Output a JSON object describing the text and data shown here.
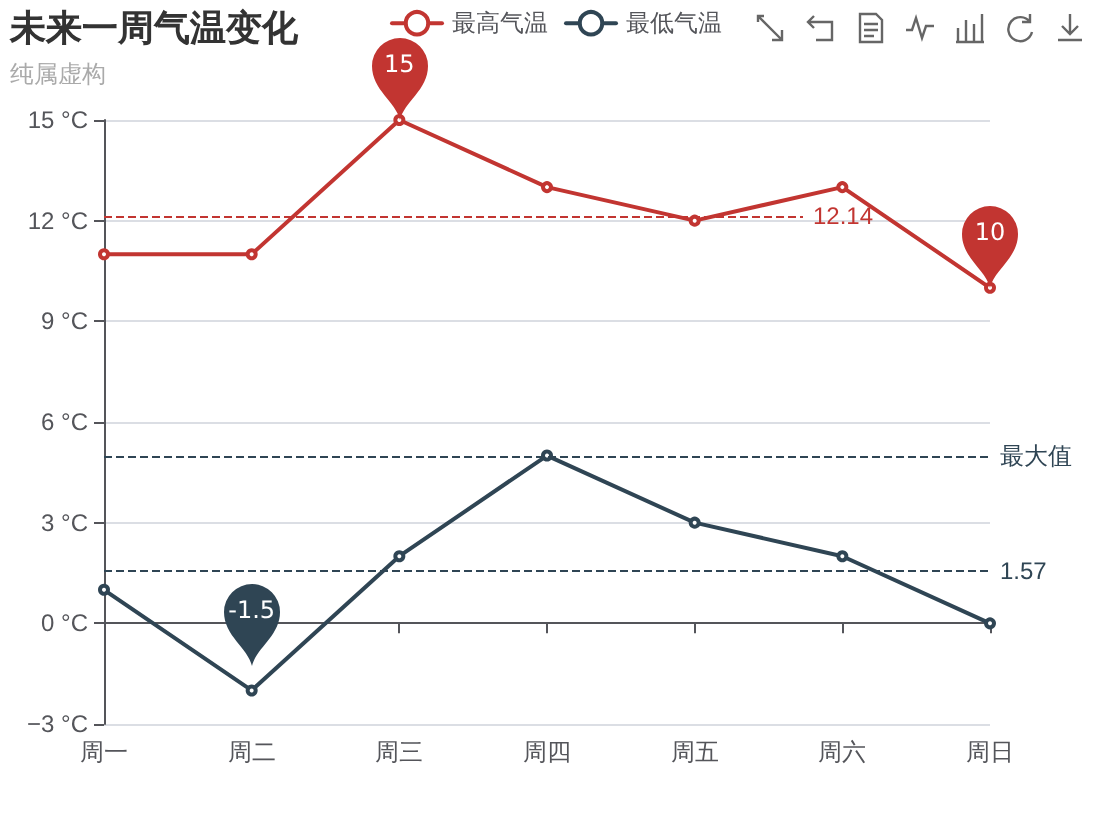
{
  "chart_data": {
    "type": "line",
    "title": "未来一周气温变化",
    "subtitle": "纯属虚构",
    "categories": [
      "周一",
      "周二",
      "周三",
      "周四",
      "周五",
      "周六",
      "周日"
    ],
    "series": [
      {
        "name": "最高气温",
        "color": "#c23531",
        "values": [
          11,
          11,
          15,
          13,
          12,
          13,
          10
        ]
      },
      {
        "name": "最低气温",
        "color": "#2f4554",
        "values": [
          1,
          -2,
          2,
          5,
          3,
          2,
          0
        ]
      }
    ],
    "ylim": [
      -3,
      15
    ],
    "yticks": [
      {
        "value": -3,
        "label": "−3 °C"
      },
      {
        "value": 0,
        "label": "0 °C"
      },
      {
        "value": 3,
        "label": "3 °C"
      },
      {
        "value": 6,
        "label": "6 °C"
      },
      {
        "value": 9,
        "label": "9 °C"
      },
      {
        "value": 12,
        "label": "12 °C"
      },
      {
        "value": 15,
        "label": "15 °C"
      }
    ],
    "annotations": [
      {
        "text": "15",
        "x": "周三",
        "y": 15
      },
      {
        "text": "10",
        "x": "周日",
        "y": 10
      },
      "-1.5"
    ],
    "ref_lines": [
      {
        "axis": "y",
        "value": 12.14,
        "label": "12.14",
        "color": "#c23531",
        "line_style": "dashed"
      },
      {
        "axis": "y",
        "value": 1.57,
        "label": "1.57",
        "color": "#2f4554",
        "line_style": "dashed"
      },
      {
        "axis": "y",
        "value": 5,
        "label": "最大值",
        "color": "#2f4554",
        "line_style": "dashed"
      }
    ],
    "grid": "y",
    "legend": "top",
    "marker": "circle",
    "line_style": "solid"
  }
}
